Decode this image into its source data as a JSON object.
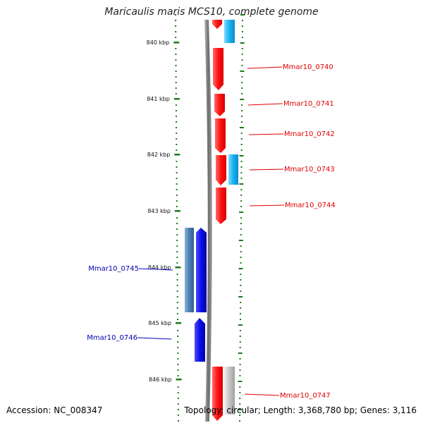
{
  "title": "Maricaulis maris MCS10, complete genome",
  "accession_label": "Accession: NC_008347",
  "topology_label": "Topology: circular; Length: 3,368,780 bp; Genes: 3,116",
  "colors": {
    "forward_cds": "#ff1a1a",
    "reverse_cds": "#1010e8",
    "forward_orf": "#1fb7f0",
    "reverse_orf": "#4a7fb5",
    "other_orf": "#c0c0c0",
    "tick": "#1a7a1a",
    "backbone": "#777777"
  },
  "kbp_ticks": [
    "840 kbp",
    "841 kbp",
    "842 kbp",
    "843 kbp",
    "844 kbp",
    "845 kbp",
    "846 kbp"
  ],
  "gene_labels": {
    "g0740": "Mmar10_0740",
    "g0741": "Mmar10_0741",
    "g0742": "Mmar10_0742",
    "g0743": "Mmar10_0743",
    "g0744": "Mmar10_0744",
    "g0745": "Mmar10_0745",
    "g0746": "Mmar10_0746",
    "g0747": "Mmar10_0747"
  }
}
